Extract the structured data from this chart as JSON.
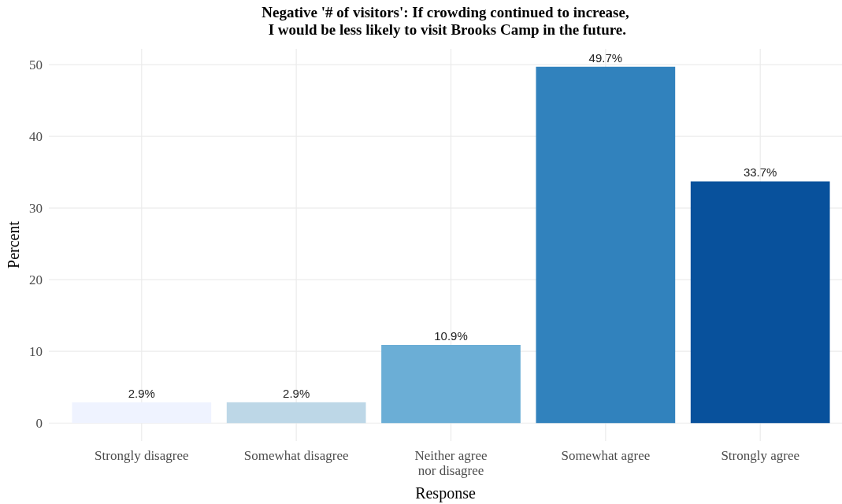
{
  "chart_data": {
    "type": "bar",
    "title": "Negative '# of visitors': If crowding continued to increase,\n I would be less likely to visit Brooks Camp in the future.",
    "xlabel": "Response",
    "ylabel": "Percent",
    "categories": [
      "Strongly disagree",
      "Somewhat disagree",
      "Neither agree\nnor disagree",
      "Somewhat agree",
      "Strongly agree"
    ],
    "values": [
      2.9,
      2.9,
      10.9,
      49.7,
      33.7
    ],
    "colors": [
      "#eff3ff",
      "#bdd7e7",
      "#6baed6",
      "#3182bd",
      "#08519c"
    ],
    "value_labels": [
      "2.9%",
      "2.9%",
      "10.9%",
      "49.7%",
      "33.7%"
    ],
    "ylim": [
      -2.5,
      52.2
    ],
    "yticks": [
      0,
      10,
      20,
      30,
      40,
      50
    ],
    "grid": true
  }
}
